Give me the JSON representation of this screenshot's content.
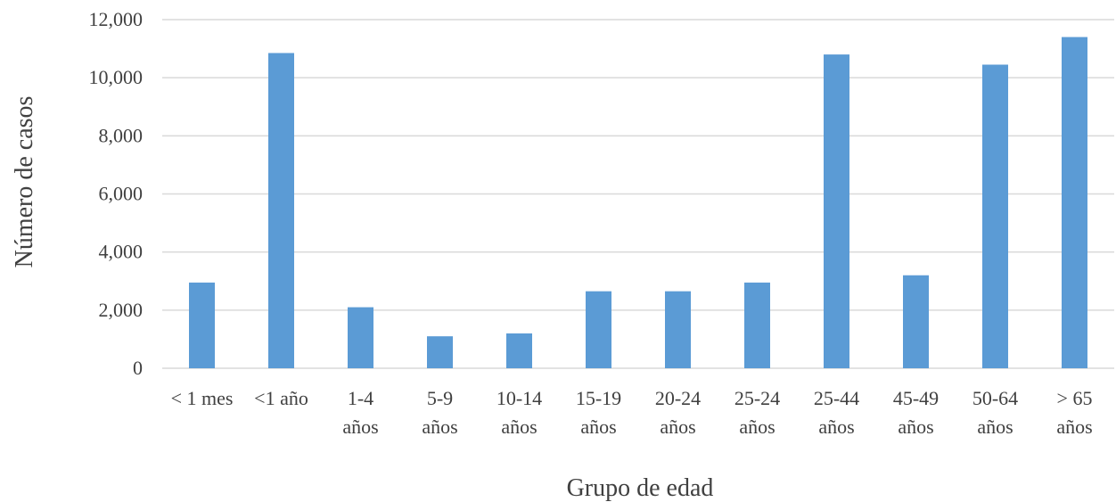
{
  "chart_data": {
    "type": "bar",
    "categories": [
      [
        "< 1 mes"
      ],
      [
        "<1 año"
      ],
      [
        "1-4",
        "años"
      ],
      [
        "5-9",
        "años"
      ],
      [
        "10-14",
        "años"
      ],
      [
        "15-19",
        "años"
      ],
      [
        "20-24",
        "años"
      ],
      [
        "25-24",
        "años"
      ],
      [
        "25-44",
        "años"
      ],
      [
        "45-49",
        "años"
      ],
      [
        "50-64",
        "años"
      ],
      [
        "> 65",
        "años"
      ]
    ],
    "values": [
      2950,
      10850,
      2100,
      1100,
      1200,
      2650,
      2650,
      2950,
      10800,
      3200,
      10450,
      11400
    ],
    "xlabel": "Grupo de edad",
    "ylabel": "Número de casos",
    "ylim": [
      0,
      12000
    ],
    "yticks": [
      "0",
      "2,000",
      "4,000",
      "6,000",
      "8,000",
      "10,000",
      "12,000"
    ],
    "grid": true,
    "bar_color": "#5b9bd5",
    "grid_color": "#d9d9d9"
  }
}
